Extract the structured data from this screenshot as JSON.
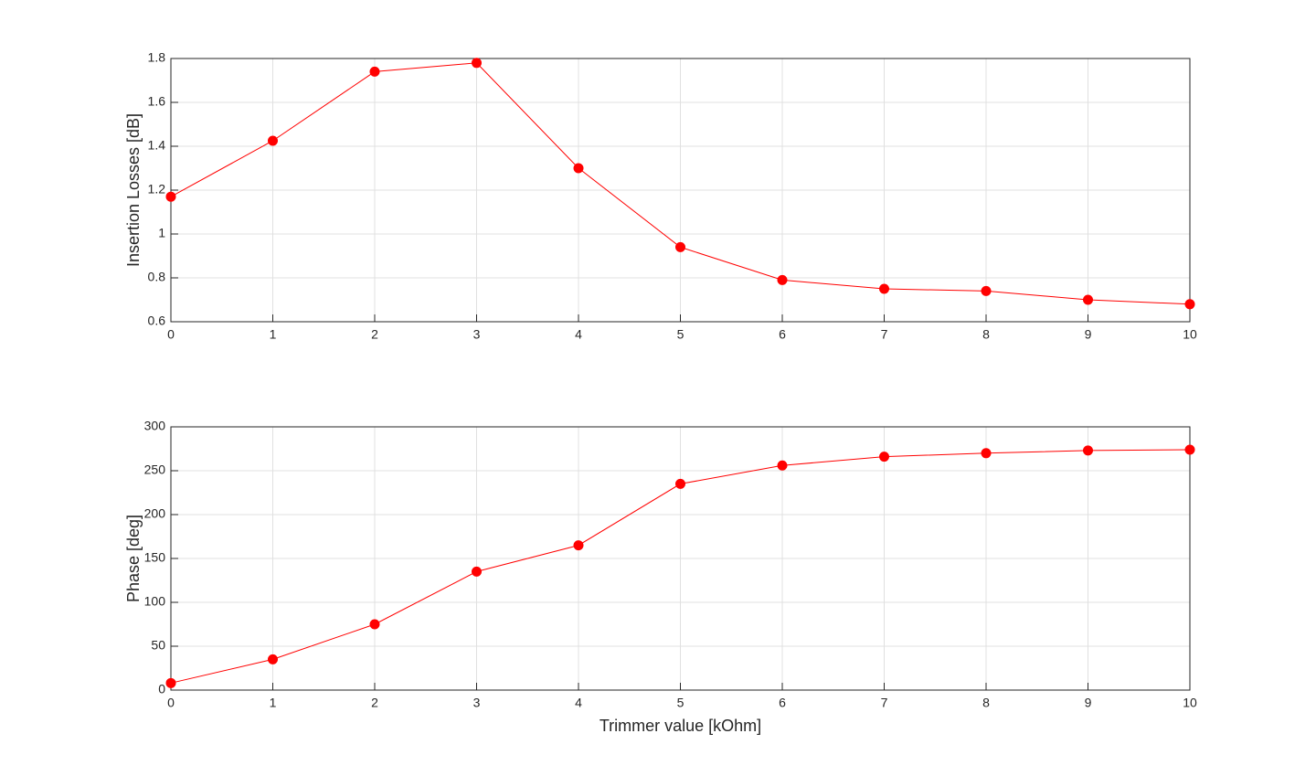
{
  "chart_data": [
    {
      "type": "line",
      "ylabel": "Insertion Losses [dB]",
      "x": [
        0,
        1,
        2,
        3,
        4,
        5,
        6,
        7,
        8,
        9,
        10
      ],
      "series": [
        {
          "color": "#ff0000",
          "values": [
            1.17,
            1.425,
            1.74,
            1.78,
            1.3,
            0.94,
            0.79,
            0.75,
            0.74,
            0.7,
            0.68
          ]
        }
      ],
      "xlim": [
        0,
        10
      ],
      "xticks": [
        0,
        1,
        2,
        3,
        4,
        5,
        6,
        7,
        8,
        9,
        10
      ],
      "ylim": [
        0.6,
        1.8
      ],
      "yticks": [
        0.6,
        0.8,
        1,
        1.2,
        1.4,
        1.6,
        1.8
      ],
      "grid": true
    },
    {
      "type": "line",
      "xlabel": "Trimmer value [kOhm]",
      "ylabel": "Phase [deg]",
      "x": [
        0,
        1,
        2,
        3,
        4,
        5,
        6,
        7,
        8,
        9,
        10
      ],
      "series": [
        {
          "color": "#ff0000",
          "values": [
            8,
            35,
            75,
            135,
            165,
            235,
            256,
            266,
            270,
            273,
            274
          ]
        }
      ],
      "xlim": [
        0,
        10
      ],
      "xticks": [
        0,
        1,
        2,
        3,
        4,
        5,
        6,
        7,
        8,
        9,
        10
      ],
      "ylim": [
        0,
        300
      ],
      "yticks": [
        0,
        50,
        100,
        150,
        200,
        250,
        300
      ],
      "grid": true
    }
  ]
}
